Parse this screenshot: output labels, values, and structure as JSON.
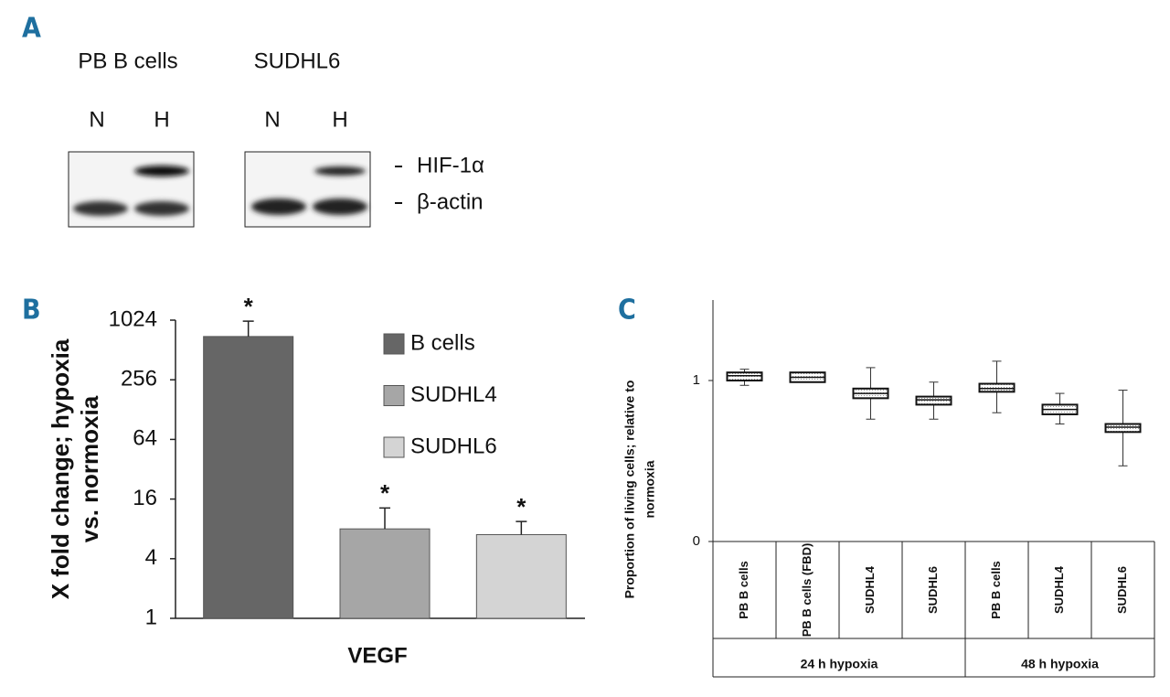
{
  "blot": {
    "panel": "A",
    "groups": [
      {
        "name": "PB B cells",
        "lanes": [
          "N",
          "H"
        ]
      },
      {
        "name": "SUDHL6",
        "lanes": [
          "N",
          "H"
        ]
      }
    ],
    "bands": [
      "HIF-1α",
      "β-actin"
    ]
  },
  "chart_data": [
    {
      "panel": "B",
      "type": "bar",
      "yscale": "log2",
      "ylabel": [
        "X fold change; hypoxia",
        "vs. normoxia"
      ],
      "xlabel": "VEGF",
      "ylim": [
        1,
        1024
      ],
      "yticks": [
        1,
        4,
        16,
        64,
        256,
        1024
      ],
      "series": [
        {
          "name": "B cells",
          "color": "#666666",
          "values": [
            700
          ],
          "errors": [
            300
          ],
          "annotation": "*"
        },
        {
          "name": "SUDHL4",
          "color": "#a6a6a6",
          "values": [
            8
          ],
          "errors": [
            5
          ],
          "annotation": "*"
        },
        {
          "name": "SUDHL6",
          "color": "#d4d4d4",
          "values": [
            7
          ],
          "errors": [
            2.5
          ],
          "annotation": "*"
        }
      ]
    },
    {
      "panel": "C",
      "type": "box",
      "ylabel": [
        "Proportion of living cells; relative to",
        "normoxia"
      ],
      "ylim": [
        0,
        1.5
      ],
      "yticks": [
        0,
        1
      ],
      "categories": [
        "PB B cells",
        "PB B cells (FBD)",
        "SUDHL4",
        "SUDHL6",
        "PB B cells",
        "SUDHL4",
        "SUDHL6"
      ],
      "groups": [
        {
          "name": "24 h hypoxia",
          "size": 4
        },
        {
          "name": "48 h hypoxia",
          "size": 3
        }
      ],
      "stats": [
        {
          "min": 0.97,
          "q1": 1.0,
          "median": 1.03,
          "q3": 1.05,
          "max": 1.07
        },
        {
          "min": 0.99,
          "q1": 0.99,
          "median": 1.02,
          "q3": 1.05,
          "max": 1.05
        },
        {
          "min": 0.76,
          "q1": 0.89,
          "median": 0.92,
          "q3": 0.95,
          "max": 1.08
        },
        {
          "min": 0.76,
          "q1": 0.85,
          "median": 0.88,
          "q3": 0.9,
          "max": 0.99
        },
        {
          "min": 0.8,
          "q1": 0.93,
          "median": 0.95,
          "q3": 0.98,
          "max": 1.12
        },
        {
          "min": 0.73,
          "q1": 0.79,
          "median": 0.82,
          "q3": 0.85,
          "max": 0.92
        },
        {
          "min": 0.47,
          "q1": 0.68,
          "median": 0.71,
          "q3": 0.73,
          "max": 0.94
        }
      ]
    }
  ]
}
